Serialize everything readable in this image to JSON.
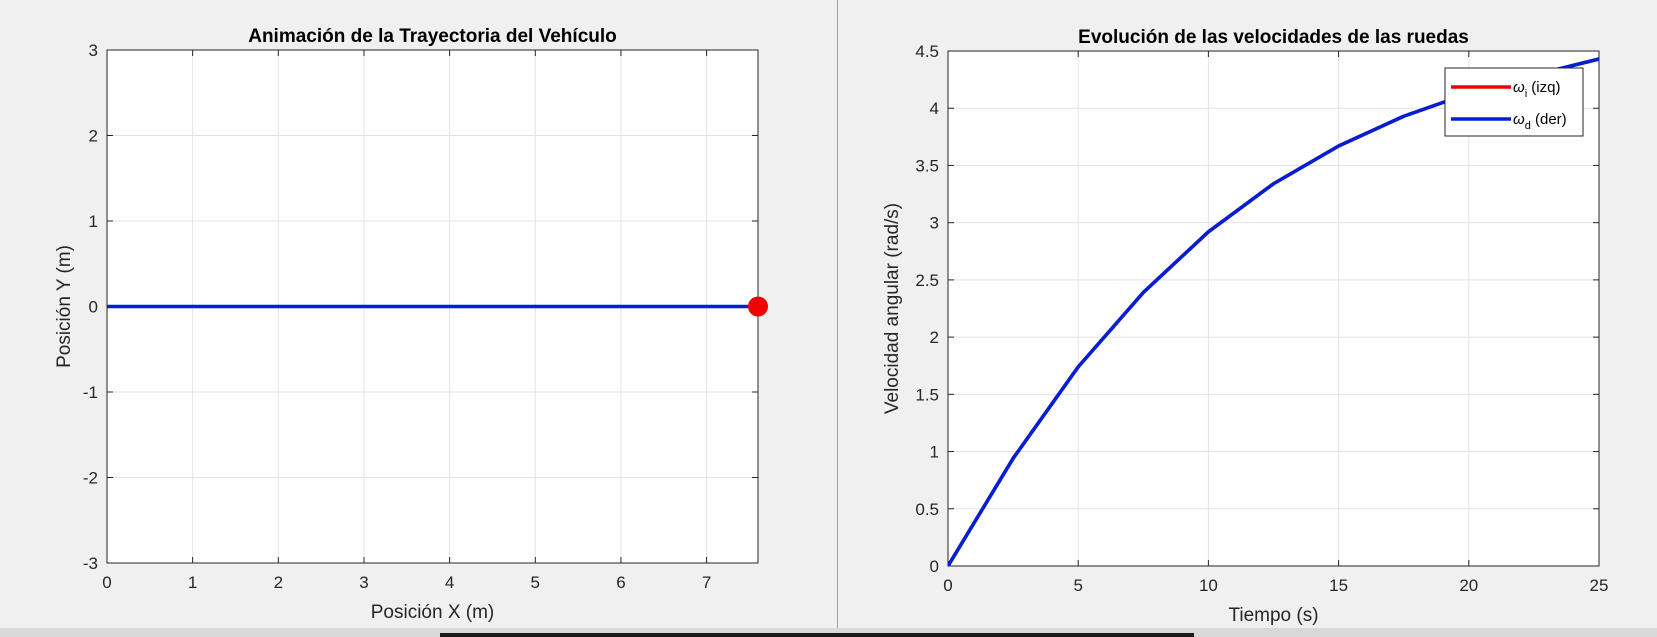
{
  "chart_data": [
    {
      "type": "line",
      "title": "Animación de la Trayectoria del Vehículo",
      "xlabel": "Posición X (m)",
      "ylabel": "Posición Y (m)",
      "xlim": [
        0,
        7.6
      ],
      "ylim": [
        -3,
        3
      ],
      "xticks": [
        "0",
        "1",
        "2",
        "3",
        "4",
        "5",
        "6",
        "7"
      ],
      "yticks": [
        "-3",
        "-2",
        "-1",
        "0",
        "1",
        "2",
        "3"
      ],
      "grid": true,
      "series": [
        {
          "values_x": [
            0,
            7.6
          ],
          "values_y": [
            0,
            0
          ],
          "color": "#0020d8"
        }
      ],
      "marker": {
        "x": 7.6,
        "y": 0,
        "color": "#f00000"
      }
    },
    {
      "type": "line",
      "title": "Evolución de las velocidades de las ruedas",
      "xlabel": "Tiempo (s)",
      "ylabel": "Velocidad angular (rad/s)",
      "xlim": [
        0,
        25
      ],
      "ylim": [
        0,
        4.5
      ],
      "xticks": [
        "0",
        "5",
        "10",
        "15",
        "20",
        "25"
      ],
      "yticks": [
        "0",
        "0.5",
        "1",
        "1.5",
        "2",
        "2.5",
        "3",
        "3.5",
        "4",
        "4.5"
      ],
      "grid": true,
      "legend": "top-right",
      "series": [
        {
          "name": "ω_i (izq)",
          "legend_symbol": "ω",
          "legend_sub": "i",
          "legend_suffix": " (izq)",
          "color": "#f00000",
          "x": [
            0,
            2.5,
            5,
            7.5,
            10,
            12.5,
            15,
            17.5,
            20,
            22.5,
            25
          ],
          "values": [
            0,
            0.94,
            1.74,
            2.39,
            2.92,
            3.34,
            3.67,
            3.93,
            4.13,
            4.29,
            4.43
          ]
        },
        {
          "name": "ω_d (der)",
          "legend_symbol": "ω",
          "legend_sub": "d",
          "legend_suffix": " (der)",
          "color": "#0020d8",
          "x": [
            0,
            2.5,
            5,
            7.5,
            10,
            12.5,
            15,
            17.5,
            20,
            22.5,
            25
          ],
          "values": [
            0,
            0.94,
            1.74,
            2.39,
            2.92,
            3.34,
            3.67,
            3.93,
            4.13,
            4.29,
            4.43
          ]
        }
      ]
    }
  ]
}
